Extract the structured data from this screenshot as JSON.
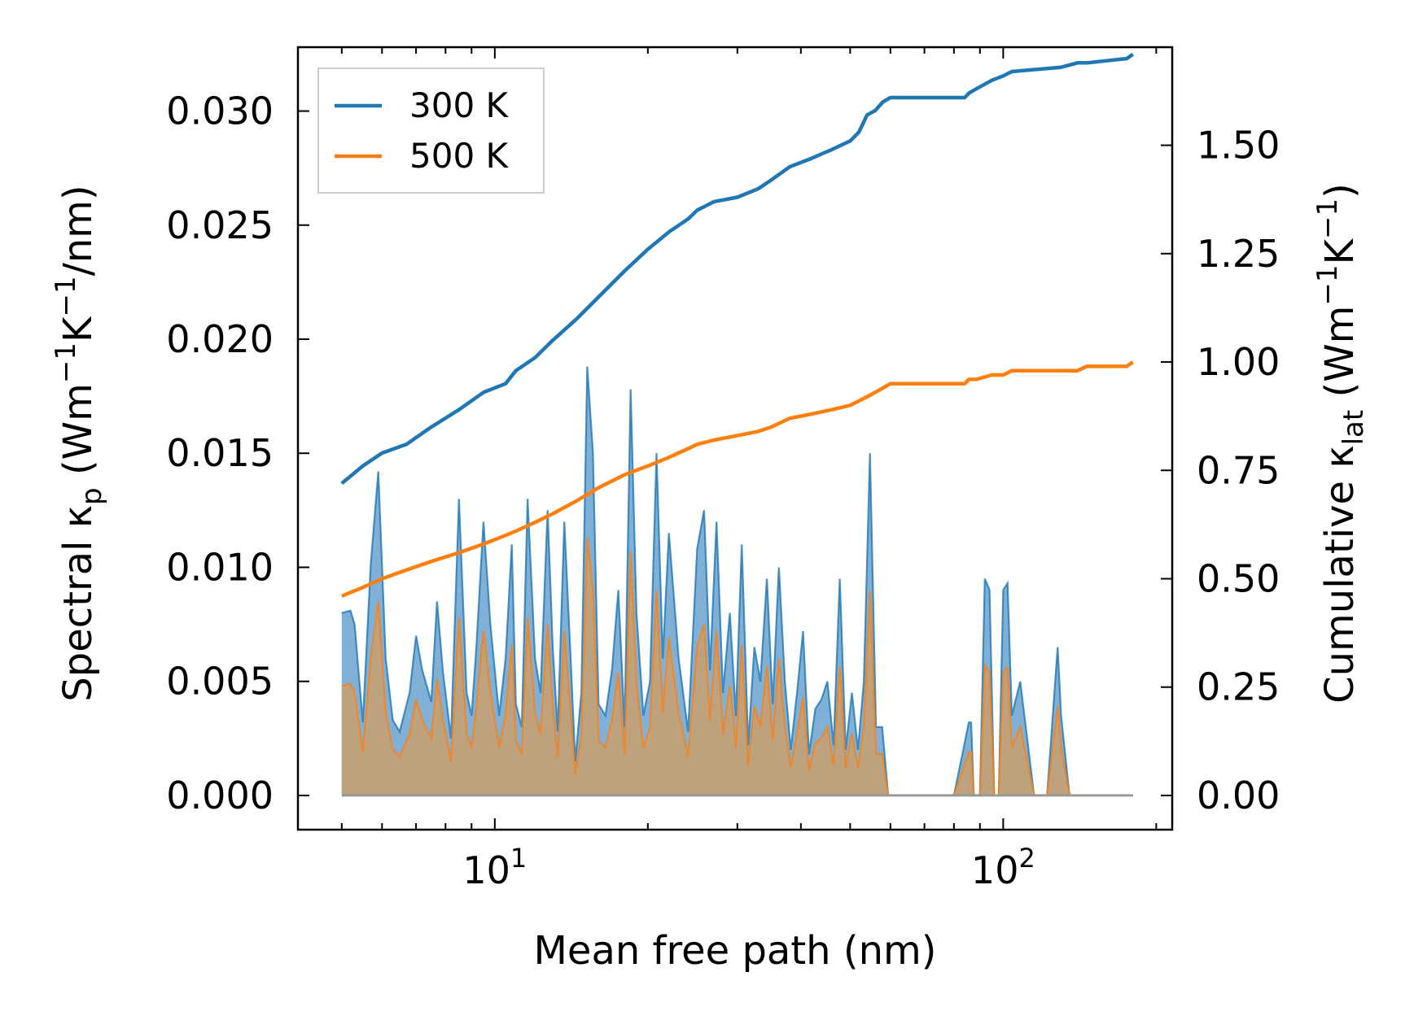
{
  "chart_data": {
    "type": "line",
    "title": "",
    "xlabel": "Mean free path (nm)",
    "ylabel_left": {
      "main": "Spectral κ",
      "sub": "p",
      "unit_open": " (Wm",
      "e1": "−1",
      "mid": "K",
      "e2": "−1",
      "unit_close": "/nm)"
    },
    "ylabel_right": {
      "main": "Cumulative κ",
      "sub": "lat",
      "unit_open": " (Wm",
      "e1": "−1",
      "mid": "K",
      "e2": "−1",
      "unit_close": ")"
    },
    "xscale": "log",
    "xlim": [
      4.1,
      215
    ],
    "ylim_left": [
      -0.0015,
      0.0328
    ],
    "ylim_right": [
      -0.0789,
      1.7263
    ],
    "x_ticks": [
      {
        "value": 10,
        "base": "10",
        "exp": "1"
      },
      {
        "value": 100,
        "base": "10",
        "exp": "2"
      }
    ],
    "y_ticks_left": [
      "0.000",
      "0.005",
      "0.010",
      "0.015",
      "0.020",
      "0.025",
      "0.030"
    ],
    "y_ticks_right": [
      "0.00",
      "0.25",
      "0.50",
      "0.75",
      "1.00",
      "1.25",
      "1.50"
    ],
    "legend": {
      "position": "upper-left",
      "entries": [
        "300 K",
        "500 K"
      ]
    },
    "colors": {
      "s300": "#1f77b4",
      "s500": "#ff7f0e",
      "fill300": "#6aa2cf",
      "fill500": "#c9a06e",
      "axis": "#000000"
    },
    "spectral": [
      {
        "name": "300 K",
        "x": [
          5.0,
          5.2,
          5.3,
          5.5,
          5.7,
          5.9,
          6.1,
          6.3,
          6.5,
          6.8,
          7.0,
          7.2,
          7.5,
          7.7,
          7.9,
          8.2,
          8.5,
          8.8,
          9.0,
          9.2,
          9.5,
          9.8,
          10.2,
          10.5,
          10.8,
          11.0,
          11.3,
          11.6,
          12.0,
          12.3,
          12.7,
          13.0,
          13.3,
          13.7,
          14.1,
          14.4,
          14.8,
          15.2,
          15.6,
          16.0,
          16.5,
          17.0,
          17.5,
          18.0,
          18.5,
          19.0,
          19.6,
          20.2,
          20.8,
          21.4,
          22.0,
          23.0,
          24.0,
          25.0,
          25.8,
          26.5,
          27.3,
          28.1,
          29.0,
          29.8,
          30.6,
          31.5,
          32.4,
          33.3,
          34.3,
          35.2,
          36.2,
          37.2,
          38.2,
          39.3,
          40.4,
          41.5,
          42.7,
          43.9,
          45.1,
          46.4,
          47.7,
          49.0,
          50.4,
          51.8,
          53.2,
          54.7,
          56.2,
          57.8,
          59.4,
          61.0,
          62.6,
          63.5,
          70.0,
          80.0,
          85.6,
          86.5,
          87.5,
          88.5,
          90.0,
          92.0,
          94.0,
          96.0,
          98.0,
          100.0,
          102.0,
          104.0,
          108.0,
          115.0,
          122.0,
          128.0,
          130.0,
          135.0,
          140.0,
          146.0,
          150.0,
          156.0,
          165.0,
          175.0,
          178.0,
          180.0
        ],
        "y": [
          0.008,
          0.0081,
          0.0075,
          0.0032,
          0.0101,
          0.0142,
          0.006,
          0.0033,
          0.0028,
          0.0045,
          0.007,
          0.0055,
          0.0041,
          0.0085,
          0.0055,
          0.0025,
          0.013,
          0.0045,
          0.0035,
          0.0065,
          0.012,
          0.0075,
          0.0035,
          0.006,
          0.011,
          0.004,
          0.003,
          0.013,
          0.006,
          0.0045,
          0.0125,
          0.0065,
          0.0028,
          0.012,
          0.006,
          0.0015,
          0.0045,
          0.0188,
          0.015,
          0.004,
          0.0035,
          0.0055,
          0.009,
          0.003,
          0.0178,
          0.008,
          0.0035,
          0.005,
          0.015,
          0.006,
          0.0115,
          0.006,
          0.0028,
          0.0108,
          0.0125,
          0.0055,
          0.012,
          0.0045,
          0.008,
          0.0035,
          0.011,
          0.0022,
          0.0065,
          0.005,
          0.0095,
          0.004,
          0.01,
          0.005,
          0.002,
          0.0045,
          0.0072,
          0.0018,
          0.0038,
          0.0042,
          0.005,
          0.0022,
          0.0095,
          0.002,
          0.0045,
          0.002,
          0.005,
          0.015,
          0.003,
          0.003,
          0.0,
          0.0,
          0.0,
          0.0,
          0.0,
          0.0,
          0.0032,
          0.0032,
          0.0,
          0.0,
          0.0,
          0.0095,
          0.009,
          0.0,
          0.0,
          0.009,
          0.0093,
          0.0035,
          0.005,
          0.0,
          0.0,
          0.0065,
          0.0035,
          0.0,
          0.0,
          0.0,
          0.0,
          0.0,
          0.0,
          0.0,
          0.0,
          0.0
        ]
      },
      {
        "name": "500 K",
        "x": [
          5.0,
          5.2,
          5.3,
          5.5,
          5.7,
          5.9,
          6.1,
          6.3,
          6.5,
          6.8,
          7.0,
          7.2,
          7.5,
          7.7,
          7.9,
          8.2,
          8.5,
          8.8,
          9.0,
          9.2,
          9.5,
          9.8,
          10.2,
          10.5,
          10.8,
          11.0,
          11.3,
          11.6,
          12.0,
          12.3,
          12.7,
          13.0,
          13.3,
          13.7,
          14.1,
          14.4,
          14.8,
          15.2,
          15.6,
          16.0,
          16.5,
          17.0,
          17.5,
          18.0,
          18.5,
          19.0,
          19.6,
          20.2,
          20.8,
          21.4,
          22.0,
          23.0,
          24.0,
          25.0,
          25.8,
          26.5,
          27.3,
          28.1,
          29.0,
          29.8,
          30.6,
          31.5,
          32.4,
          33.3,
          34.3,
          35.2,
          36.2,
          37.2,
          38.2,
          39.3,
          40.4,
          41.5,
          42.7,
          43.9,
          45.1,
          46.4,
          47.7,
          49.0,
          50.4,
          51.8,
          53.2,
          54.7,
          56.2,
          57.8,
          59.4,
          61.0,
          62.6,
          63.5,
          70.0,
          80.0,
          85.6,
          86.5,
          87.5,
          88.5,
          90.0,
          92.0,
          94.0,
          96.0,
          98.0,
          100.0,
          102.0,
          104.0,
          108.0,
          115.0,
          122.0,
          128.0,
          130.0,
          135.0,
          140.0,
          146.0,
          150.0,
          156.0,
          165.0,
          175.0,
          178.0,
          180.0
        ],
        "y": [
          0.0048,
          0.0049,
          0.0045,
          0.0019,
          0.006,
          0.0085,
          0.0036,
          0.002,
          0.0017,
          0.0027,
          0.0042,
          0.0033,
          0.0025,
          0.0051,
          0.0033,
          0.0015,
          0.0078,
          0.0027,
          0.0021,
          0.0039,
          0.0072,
          0.0045,
          0.0021,
          0.0036,
          0.0066,
          0.0024,
          0.0018,
          0.0078,
          0.0036,
          0.0027,
          0.0075,
          0.0039,
          0.0017,
          0.0072,
          0.0036,
          0.0009,
          0.0027,
          0.0113,
          0.009,
          0.0024,
          0.0021,
          0.0033,
          0.0054,
          0.0018,
          0.0107,
          0.0048,
          0.0021,
          0.003,
          0.009,
          0.0036,
          0.0069,
          0.0036,
          0.0017,
          0.0065,
          0.0075,
          0.0033,
          0.0072,
          0.0027,
          0.0048,
          0.0021,
          0.0066,
          0.0013,
          0.0039,
          0.003,
          0.0057,
          0.0024,
          0.006,
          0.003,
          0.0012,
          0.0027,
          0.0043,
          0.0011,
          0.0023,
          0.0025,
          0.003,
          0.0013,
          0.0057,
          0.0012,
          0.0027,
          0.0012,
          0.003,
          0.009,
          0.0018,
          0.0018,
          0.0,
          0.0,
          0.0,
          0.0,
          0.0,
          0.0,
          0.0019,
          0.0019,
          0.0,
          0.0,
          0.0,
          0.0057,
          0.0054,
          0.0,
          0.0,
          0.0054,
          0.0056,
          0.0021,
          0.003,
          0.0,
          0.0,
          0.0039,
          0.0021,
          0.0,
          0.0,
          0.0,
          0.0,
          0.0,
          0.0,
          0.0,
          0.0,
          0.0
        ]
      }
    ],
    "cumulative": [
      {
        "name": "300 K",
        "x": [
          5.0,
          5.5,
          6.0,
          6.7,
          7.5,
          8.5,
          9.5,
          10.5,
          11.0,
          12.0,
          13.0,
          14.5,
          16.0,
          18.0,
          20.0,
          22.0,
          24.0,
          25.0,
          27.0,
          30.0,
          33.0,
          35.0,
          38.0,
          42.0,
          46.0,
          50.0,
          52.0,
          54.0,
          56.0,
          58.0,
          60.0,
          70.0,
          84.0,
          85.6,
          88.5,
          95.0,
          100.0,
          104.0,
          130.0,
          140.0,
          146.0,
          175.0,
          180.0
        ],
        "y": [
          0.72,
          0.76,
          0.79,
          0.81,
          0.85,
          0.89,
          0.93,
          0.95,
          0.98,
          1.01,
          1.05,
          1.1,
          1.15,
          1.21,
          1.26,
          1.3,
          1.33,
          1.35,
          1.37,
          1.38,
          1.4,
          1.42,
          1.45,
          1.47,
          1.49,
          1.51,
          1.53,
          1.57,
          1.58,
          1.6,
          1.61,
          1.61,
          1.61,
          1.62,
          1.63,
          1.65,
          1.66,
          1.67,
          1.68,
          1.69,
          1.69,
          1.7,
          1.71
        ]
      },
      {
        "name": "500 K",
        "x": [
          5.0,
          5.5,
          6.0,
          6.7,
          7.5,
          8.5,
          9.5,
          10.5,
          11.0,
          12.0,
          13.0,
          14.5,
          16.0,
          18.0,
          20.0,
          22.0,
          24.0,
          25.0,
          27.0,
          30.0,
          33.0,
          35.0,
          38.0,
          42.0,
          46.0,
          50.0,
          52.0,
          54.0,
          56.0,
          58.0,
          60.0,
          70.0,
          84.0,
          85.6,
          88.5,
          95.0,
          100.0,
          104.0,
          130.0,
          140.0,
          146.0,
          175.0,
          180.0
        ],
        "y": [
          0.46,
          0.48,
          0.5,
          0.52,
          0.54,
          0.56,
          0.58,
          0.6,
          0.61,
          0.63,
          0.65,
          0.68,
          0.71,
          0.74,
          0.76,
          0.78,
          0.8,
          0.81,
          0.82,
          0.83,
          0.84,
          0.85,
          0.87,
          0.88,
          0.89,
          0.9,
          0.91,
          0.92,
          0.93,
          0.94,
          0.95,
          0.95,
          0.95,
          0.96,
          0.96,
          0.97,
          0.97,
          0.98,
          0.98,
          0.98,
          0.99,
          0.99,
          1.0
        ]
      }
    ]
  }
}
